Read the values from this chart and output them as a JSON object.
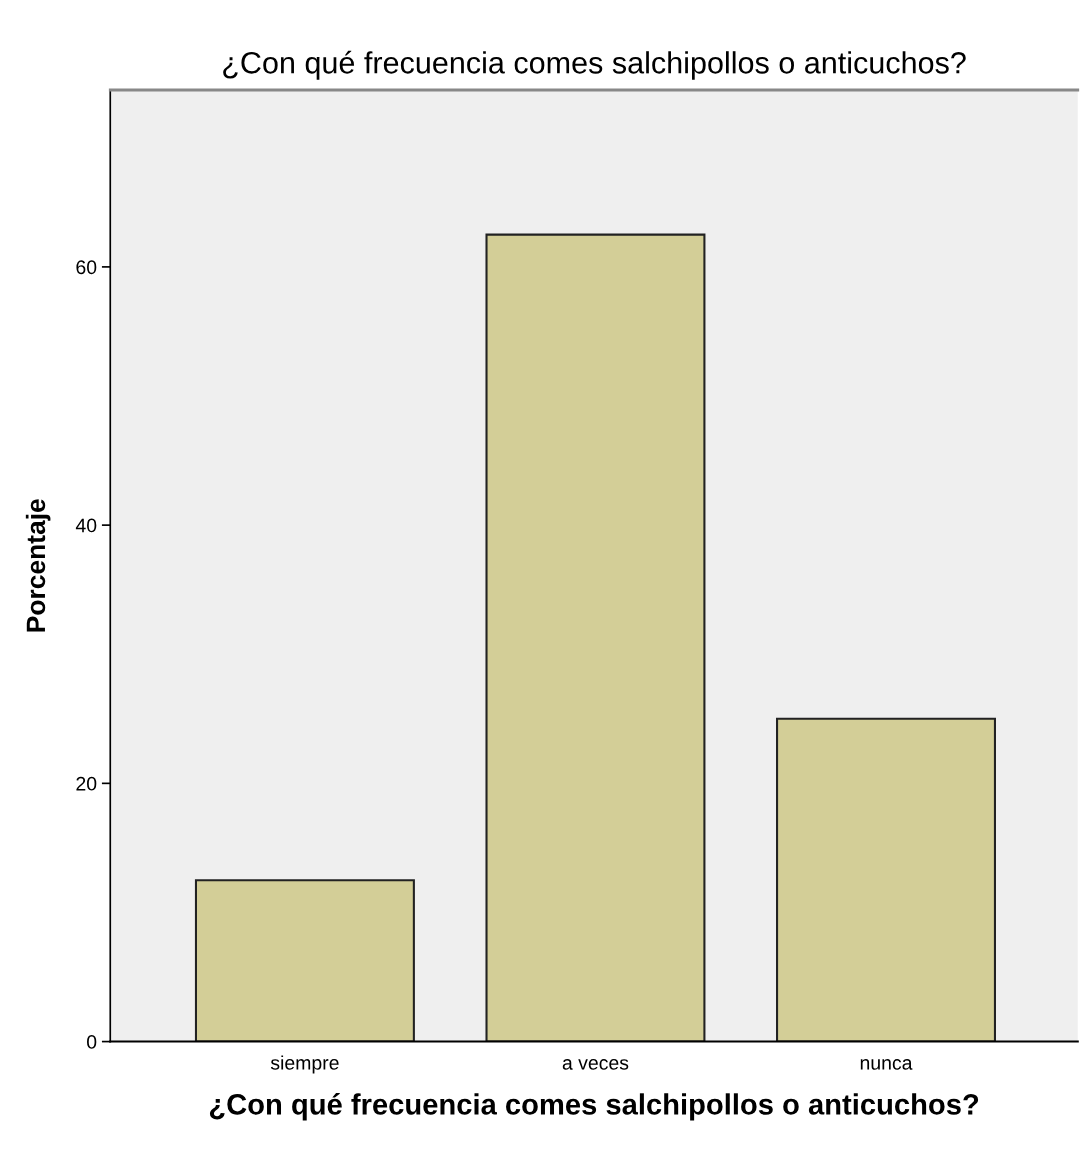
{
  "chart_data": {
    "type": "bar",
    "title": "¿Con qué frecuencia comes salchipollos o anticuchos?",
    "xlabel": "¿Con qué frecuencia comes salchipollos o anticuchos?",
    "ylabel": "Porcentaje",
    "categories": [
      "siempre",
      "a veces",
      "nunca"
    ],
    "values": [
      12.5,
      62.5,
      25
    ],
    "color": "#d3ce97",
    "ylim": [
      0,
      73.7
    ],
    "yticks": [
      0,
      20,
      40,
      60
    ],
    "grid": false
  }
}
